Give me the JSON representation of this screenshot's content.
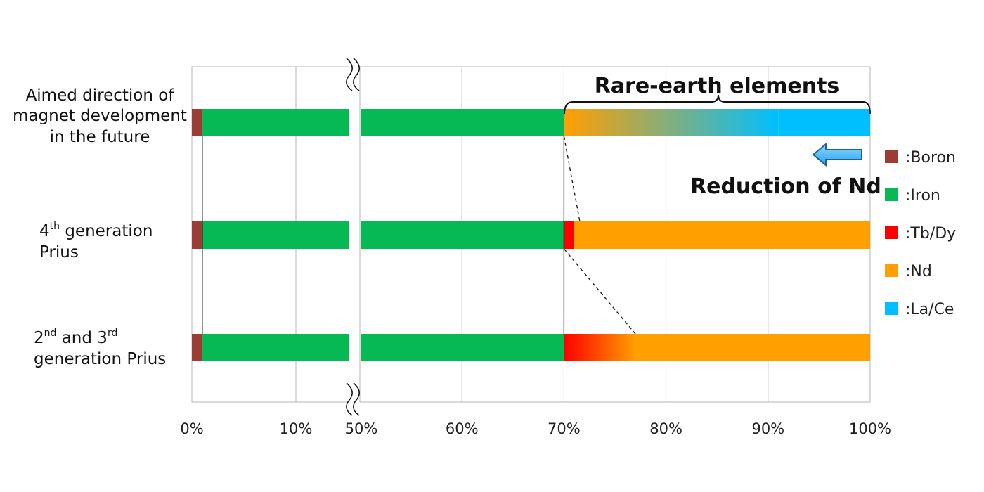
{
  "chart_data": {
    "type": "bar",
    "orientation": "horizontal",
    "stacked": true,
    "axis_break": [
      10,
      50
    ],
    "xlim": [
      0,
      100
    ],
    "x_ticks": [
      "0%",
      "10%",
      "50%",
      "60%",
      "70%",
      "80%",
      "90%",
      "100%"
    ],
    "gridlines": true,
    "categories": [
      {
        "main1": "Aimed direction of",
        "main2": "magnet development",
        "main3": "in the future"
      },
      {
        "sup_base": "4",
        "sup": "th",
        "rest": " generation",
        "line2": "Prius"
      },
      {
        "a_base": "2",
        "a_sup": "nd",
        "mid": " and 3",
        "b_sup": "rd",
        "line2": "generation Prius"
      }
    ],
    "series": [
      {
        "name": "Boron",
        "label": ":Boron",
        "color": "#9b3d34",
        "values": [
          1,
          1,
          1
        ]
      },
      {
        "name": "Iron",
        "label": ":Iron",
        "color": "#07b955",
        "values": [
          69,
          69,
          69
        ]
      },
      {
        "name": "Tb/Dy",
        "label": ":Tb/Dy",
        "color": "#fe0000",
        "values": [
          0,
          1,
          7
        ]
      },
      {
        "name": "Nd",
        "label": ":Nd",
        "color": "#ff9f00",
        "values": [
          21,
          29,
          23
        ]
      },
      {
        "name": "La/Ce",
        "label": ":La/Ce",
        "color": "#00bfff",
        "values": [
          9,
          0,
          0
        ]
      }
    ],
    "annotations": {
      "rare_earth": "Rare-earth elements",
      "reduction": "Reduction of Nd"
    },
    "legend_position": "right"
  }
}
